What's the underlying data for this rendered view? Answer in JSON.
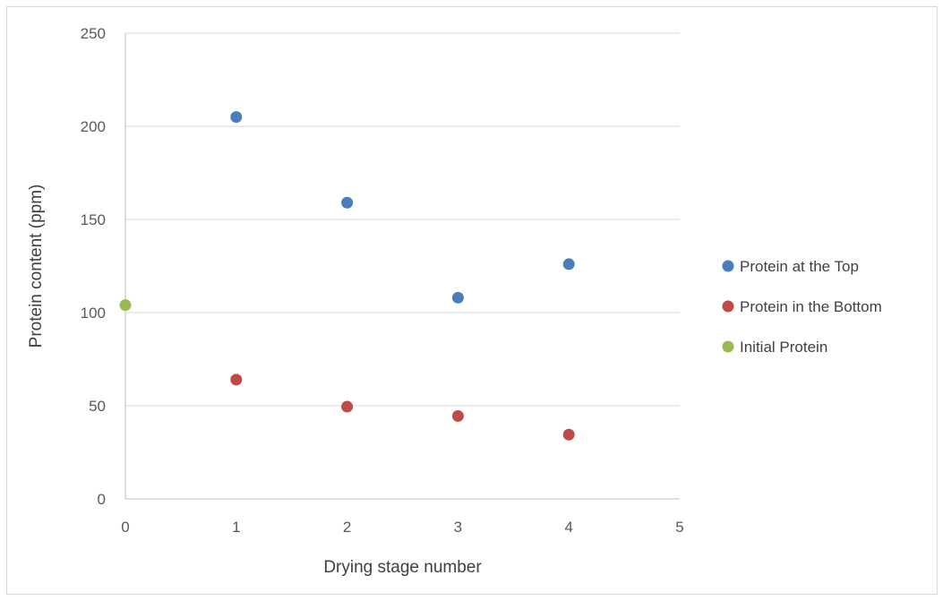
{
  "chart_data": {
    "type": "scatter",
    "title": "",
    "xlabel": "Drying stage number",
    "ylabel": "Protein content (ppm)",
    "xlim": [
      0,
      5
    ],
    "ylim": [
      0,
      250
    ],
    "xticks": [
      0,
      1,
      2,
      3,
      4,
      5
    ],
    "yticks": [
      0,
      50,
      100,
      150,
      200,
      250
    ],
    "grid": "horizontal",
    "legend_position": "right",
    "series": [
      {
        "name": "Protein at the Top",
        "color": "#4a7ebb",
        "points": [
          [
            1,
            205
          ],
          [
            2,
            159
          ],
          [
            3,
            108
          ],
          [
            4,
            126
          ]
        ]
      },
      {
        "name": "Protein in the Bottom",
        "color": "#be4b48",
        "points": [
          [
            1,
            64
          ],
          [
            2,
            49.5
          ],
          [
            3,
            44.5
          ],
          [
            4,
            34.5
          ]
        ]
      },
      {
        "name": "Initial Protein",
        "color": "#98b954",
        "points": [
          [
            0,
            104
          ]
        ]
      }
    ]
  }
}
